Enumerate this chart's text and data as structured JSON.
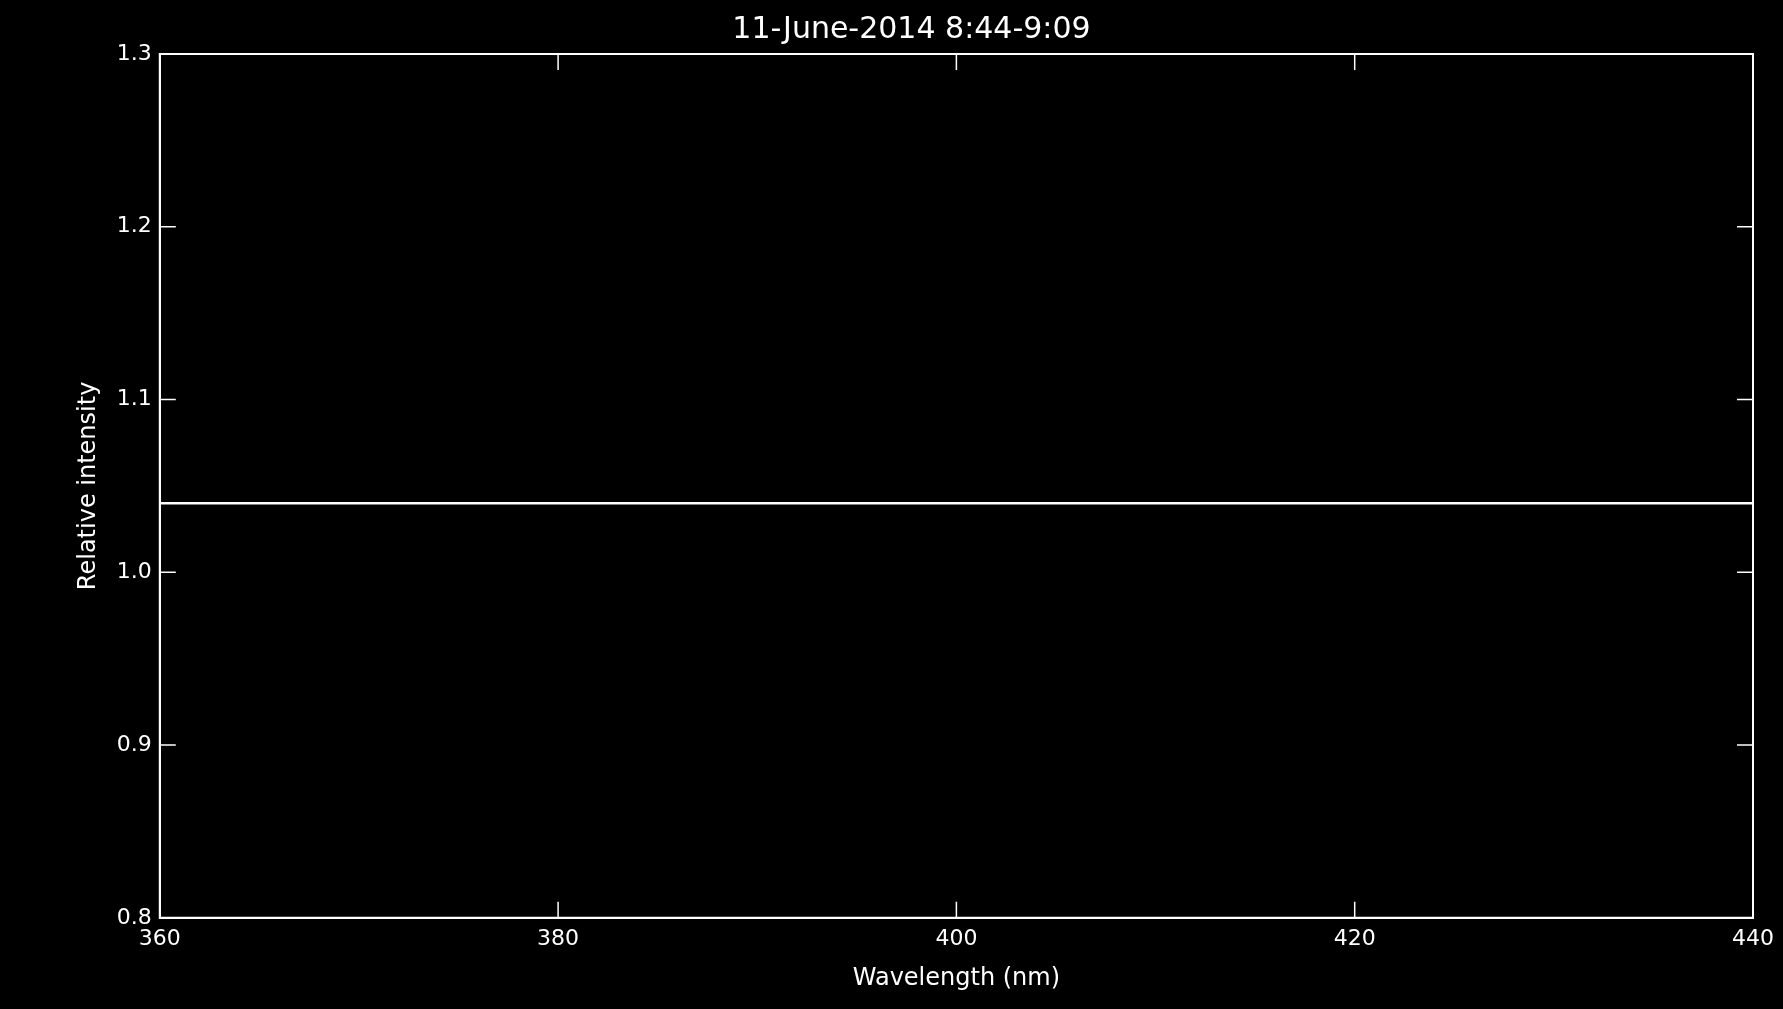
{
  "chart_data": {
    "type": "line",
    "title": "11-June-2014 8:44-9:09",
    "xlabel": "Wavelength (nm)",
    "ylabel": "Relative intensity",
    "series": [
      {
        "color": "#ffffff",
        "x": [
          360,
          440
        ],
        "values": [
          1.04,
          1.04
        ]
      }
    ],
    "xlim": [
      360,
      440
    ],
    "xticks": [
      360,
      380,
      400,
      420,
      440
    ],
    "ylim": [
      0.8,
      1.3
    ],
    "yticks": [
      0.8,
      0.9,
      {
        "value": 1,
        "label": "1.0"
      },
      1.1,
      1.2,
      1.3
    ],
    "grid": false,
    "legend": false,
    "marker": "none",
    "line_style": "solid"
  }
}
